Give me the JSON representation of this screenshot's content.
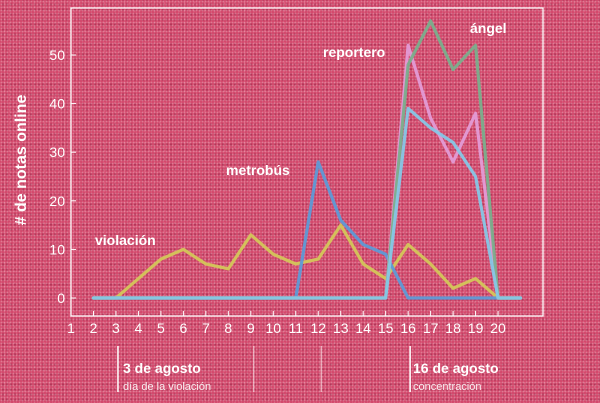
{
  "chart_data": {
    "type": "line",
    "ylabel": "# de notas online",
    "xlabel": "",
    "x": [
      2,
      3,
      4,
      5,
      6,
      7,
      8,
      9,
      10,
      11,
      12,
      13,
      14,
      15,
      16,
      17,
      18,
      19,
      20,
      21
    ],
    "x_ticks": [
      "1",
      "2",
      "3",
      "4",
      "5",
      "6",
      "7",
      "8",
      "9",
      "10",
      "11",
      "12",
      "13",
      "14",
      "15",
      "16",
      "17",
      "18",
      "19",
      "20"
    ],
    "y_ticks": [
      "0",
      "10",
      "20",
      "30",
      "40",
      "50"
    ],
    "xlim": [
      1,
      22
    ],
    "ylim": [
      0,
      58
    ],
    "grid": false,
    "series": [
      {
        "name": "violación",
        "color": "#d4c65a",
        "values": [
          0,
          0,
          4,
          8,
          10,
          7,
          6,
          13,
          9,
          7,
          8,
          15,
          7,
          4,
          11,
          7,
          2,
          4,
          0,
          0
        ]
      },
      {
        "name": "metrobús",
        "color": "#5e9ad6",
        "values": [
          0,
          0,
          0,
          0,
          0,
          0,
          0,
          0,
          0,
          0,
          28,
          16,
          11,
          9,
          0,
          0,
          0,
          0,
          0,
          0
        ]
      },
      {
        "name": "reportero",
        "color": "#e39bd6",
        "values": [
          0,
          0,
          0,
          0,
          0,
          0,
          0,
          0,
          0,
          0,
          0,
          0,
          0,
          0,
          52,
          37,
          28,
          38,
          0,
          0
        ]
      },
      {
        "name": "ángel",
        "color": "#7aae8c",
        "values": [
          0,
          0,
          0,
          0,
          0,
          0,
          0,
          0,
          0,
          0,
          0,
          0,
          0,
          0,
          48,
          57,
          47,
          52,
          0,
          0
        ]
      },
      {
        "name": "",
        "color": "#86c7e6",
        "values": [
          0,
          0,
          0,
          0,
          0,
          0,
          0,
          0,
          0,
          0,
          0,
          0,
          0,
          0,
          39,
          35,
          32,
          25,
          0,
          0
        ]
      }
    ],
    "annotations": [
      {
        "x": 3,
        "title": "3 de agosto",
        "subtitle": "día de la violación"
      },
      {
        "x": 16,
        "title": "16 de agosto",
        "subtitle": "concentración"
      }
    ],
    "extra_marker_days": [
      9,
      12
    ]
  }
}
